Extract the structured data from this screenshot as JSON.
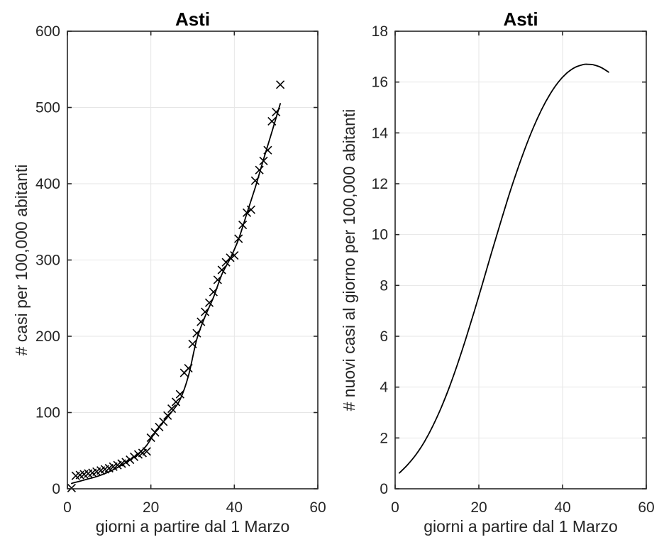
{
  "style": {
    "background": "#ffffff",
    "text_color": "#262626",
    "title_color": "#000000",
    "grid_color": "#e6e6e6",
    "axis_color": "#262626",
    "line_color": "#000000",
    "marker_color": "#000000"
  },
  "chart_data": [
    {
      "type": "scatter",
      "title": "Asti",
      "xlabel": "giorni a partire dal 1 Marzo",
      "ylabel": "# casi per 100,000 abitanti",
      "xlim": [
        0,
        60
      ],
      "ylim": [
        0,
        600
      ],
      "xticks": [
        0,
        20,
        40,
        60
      ],
      "yticks": [
        0,
        100,
        200,
        300,
        400,
        500,
        600
      ],
      "grid": true,
      "legend": "none",
      "series": [
        {
          "type": "scatter",
          "marker": "x",
          "points": [
            [
              1,
              1
            ],
            [
              2,
              17
            ],
            [
              3,
              18
            ],
            [
              4,
              19
            ],
            [
              5,
              20
            ],
            [
              6,
              21
            ],
            [
              7,
              22.5
            ],
            [
              8,
              24
            ],
            [
              9,
              25.5
            ],
            [
              10,
              27
            ],
            [
              11,
              29
            ],
            [
              12,
              31
            ],
            [
              13,
              33
            ],
            [
              14,
              35
            ],
            [
              15,
              38
            ],
            [
              16,
              42
            ],
            [
              17,
              45
            ],
            [
              18,
              47
            ],
            [
              19,
              49
            ],
            [
              20,
              67
            ],
            [
              21,
              74
            ],
            [
              22,
              81
            ],
            [
              23,
              88
            ],
            [
              24,
              96
            ],
            [
              25,
              105
            ],
            [
              26,
              114
            ],
            [
              27,
              124
            ],
            [
              28,
              152
            ],
            [
              29,
              158
            ],
            [
              30,
              190
            ],
            [
              31,
              204
            ],
            [
              32,
              219
            ],
            [
              33,
              232
            ],
            [
              34,
              244
            ],
            [
              35,
              258
            ],
            [
              36,
              274
            ],
            [
              37,
              287
            ],
            [
              38,
              297
            ],
            [
              39,
              303
            ],
            [
              40,
              306
            ],
            [
              41,
              328
            ],
            [
              42,
              346
            ],
            [
              43,
              362
            ],
            [
              44,
              366
            ],
            [
              45,
              404
            ],
            [
              46,
              418
            ],
            [
              47,
              430
            ],
            [
              48,
              444
            ],
            [
              49,
              482
            ],
            [
              50,
              494
            ],
            [
              51,
              530
            ]
          ]
        },
        {
          "type": "line",
          "points": [
            [
              1,
              7
            ],
            [
              3,
              10
            ],
            [
              5,
              13
            ],
            [
              7,
              16
            ],
            [
              9,
              20
            ],
            [
              11,
              25
            ],
            [
              13,
              31
            ],
            [
              15,
              38
            ],
            [
              17,
              46
            ],
            [
              19,
              57
            ],
            [
              21,
              74
            ],
            [
              23,
              88
            ],
            [
              25,
              101
            ],
            [
              27,
              117
            ],
            [
              29,
              148
            ],
            [
              31,
              196
            ],
            [
              33,
              226
            ],
            [
              35,
              251
            ],
            [
              37,
              281
            ],
            [
              39,
              302
            ],
            [
              41,
              327
            ],
            [
              43,
              361
            ],
            [
              45,
              395
            ],
            [
              47,
              432
            ],
            [
              49,
              468
            ],
            [
              51,
              505
            ]
          ]
        }
      ]
    },
    {
      "type": "line",
      "title": "Asti",
      "xlabel": "giorni a partire dal 1 Marzo",
      "ylabel": "# nuovi casi al giorno per 100,000 abitanti",
      "xlim": [
        0,
        60
      ],
      "ylim": [
        0,
        18
      ],
      "xticks": [
        0,
        20,
        40,
        60
      ],
      "yticks": [
        0,
        2,
        4,
        6,
        8,
        10,
        12,
        14,
        16,
        18
      ],
      "grid": true,
      "legend": "none",
      "series": [
        {
          "type": "line",
          "points": [
            [
              1,
              0.62
            ],
            [
              3,
              0.95
            ],
            [
              5,
              1.35
            ],
            [
              7,
              1.85
            ],
            [
              9,
              2.47
            ],
            [
              11,
              3.19
            ],
            [
              13,
              4.02
            ],
            [
              15,
              4.95
            ],
            [
              17,
              5.96
            ],
            [
              19,
              7.03
            ],
            [
              21,
              8.14
            ],
            [
              23,
              9.27
            ],
            [
              25,
              10.37
            ],
            [
              27,
              11.45
            ],
            [
              29,
              12.45
            ],
            [
              31,
              13.37
            ],
            [
              33,
              14.2
            ],
            [
              35,
              14.92
            ],
            [
              37,
              15.52
            ],
            [
              39,
              16.0
            ],
            [
              41,
              16.35
            ],
            [
              43,
              16.58
            ],
            [
              45,
              16.69
            ],
            [
              46,
              16.7
            ],
            [
              47,
              16.69
            ],
            [
              48,
              16.65
            ],
            [
              49,
              16.59
            ],
            [
              50,
              16.5
            ],
            [
              51,
              16.39
            ]
          ]
        }
      ]
    }
  ]
}
